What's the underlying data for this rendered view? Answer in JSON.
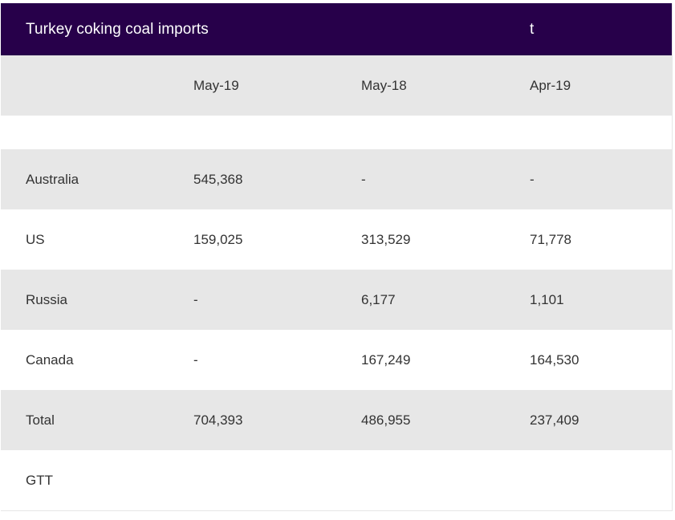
{
  "table": {
    "title": "Turkey coking coal imports",
    "unit": "t",
    "columns": [
      "",
      "May-19",
      "May-18",
      "Apr-19"
    ],
    "rows": [
      {
        "label": "Australia",
        "values": [
          "545,368",
          "-",
          "-"
        ]
      },
      {
        "label": "US",
        "values": [
          "159,025",
          "313,529",
          "71,778"
        ]
      },
      {
        "label": "Russia",
        "values": [
          "-",
          "6,177",
          "1,101"
        ]
      },
      {
        "label": "Canada",
        "values": [
          "-",
          "167,249",
          "164,530"
        ]
      },
      {
        "label": "Total",
        "values": [
          "704,393",
          "486,955",
          "237,409"
        ]
      },
      {
        "label": "GTT",
        "values": [
          "",
          "",
          ""
        ]
      }
    ]
  },
  "colors": {
    "header_bg": "#27004a",
    "header_text": "#ffffff",
    "shade_bg": "#e7e7e7",
    "text": "#333333"
  },
  "chart_data": {
    "type": "table",
    "title": "Turkey coking coal imports",
    "unit": "t",
    "columns": [
      "May-19",
      "May-18",
      "Apr-19"
    ],
    "rows": [
      {
        "name": "Australia",
        "values": [
          545368,
          null,
          null
        ]
      },
      {
        "name": "US",
        "values": [
          159025,
          313529,
          71778
        ]
      },
      {
        "name": "Russia",
        "values": [
          null,
          6177,
          1101
        ]
      },
      {
        "name": "Canada",
        "values": [
          null,
          167249,
          164530
        ]
      },
      {
        "name": "Total",
        "values": [
          704393,
          486955,
          237409
        ]
      },
      {
        "name": "GTT",
        "values": [
          null,
          null,
          null
        ]
      }
    ]
  }
}
